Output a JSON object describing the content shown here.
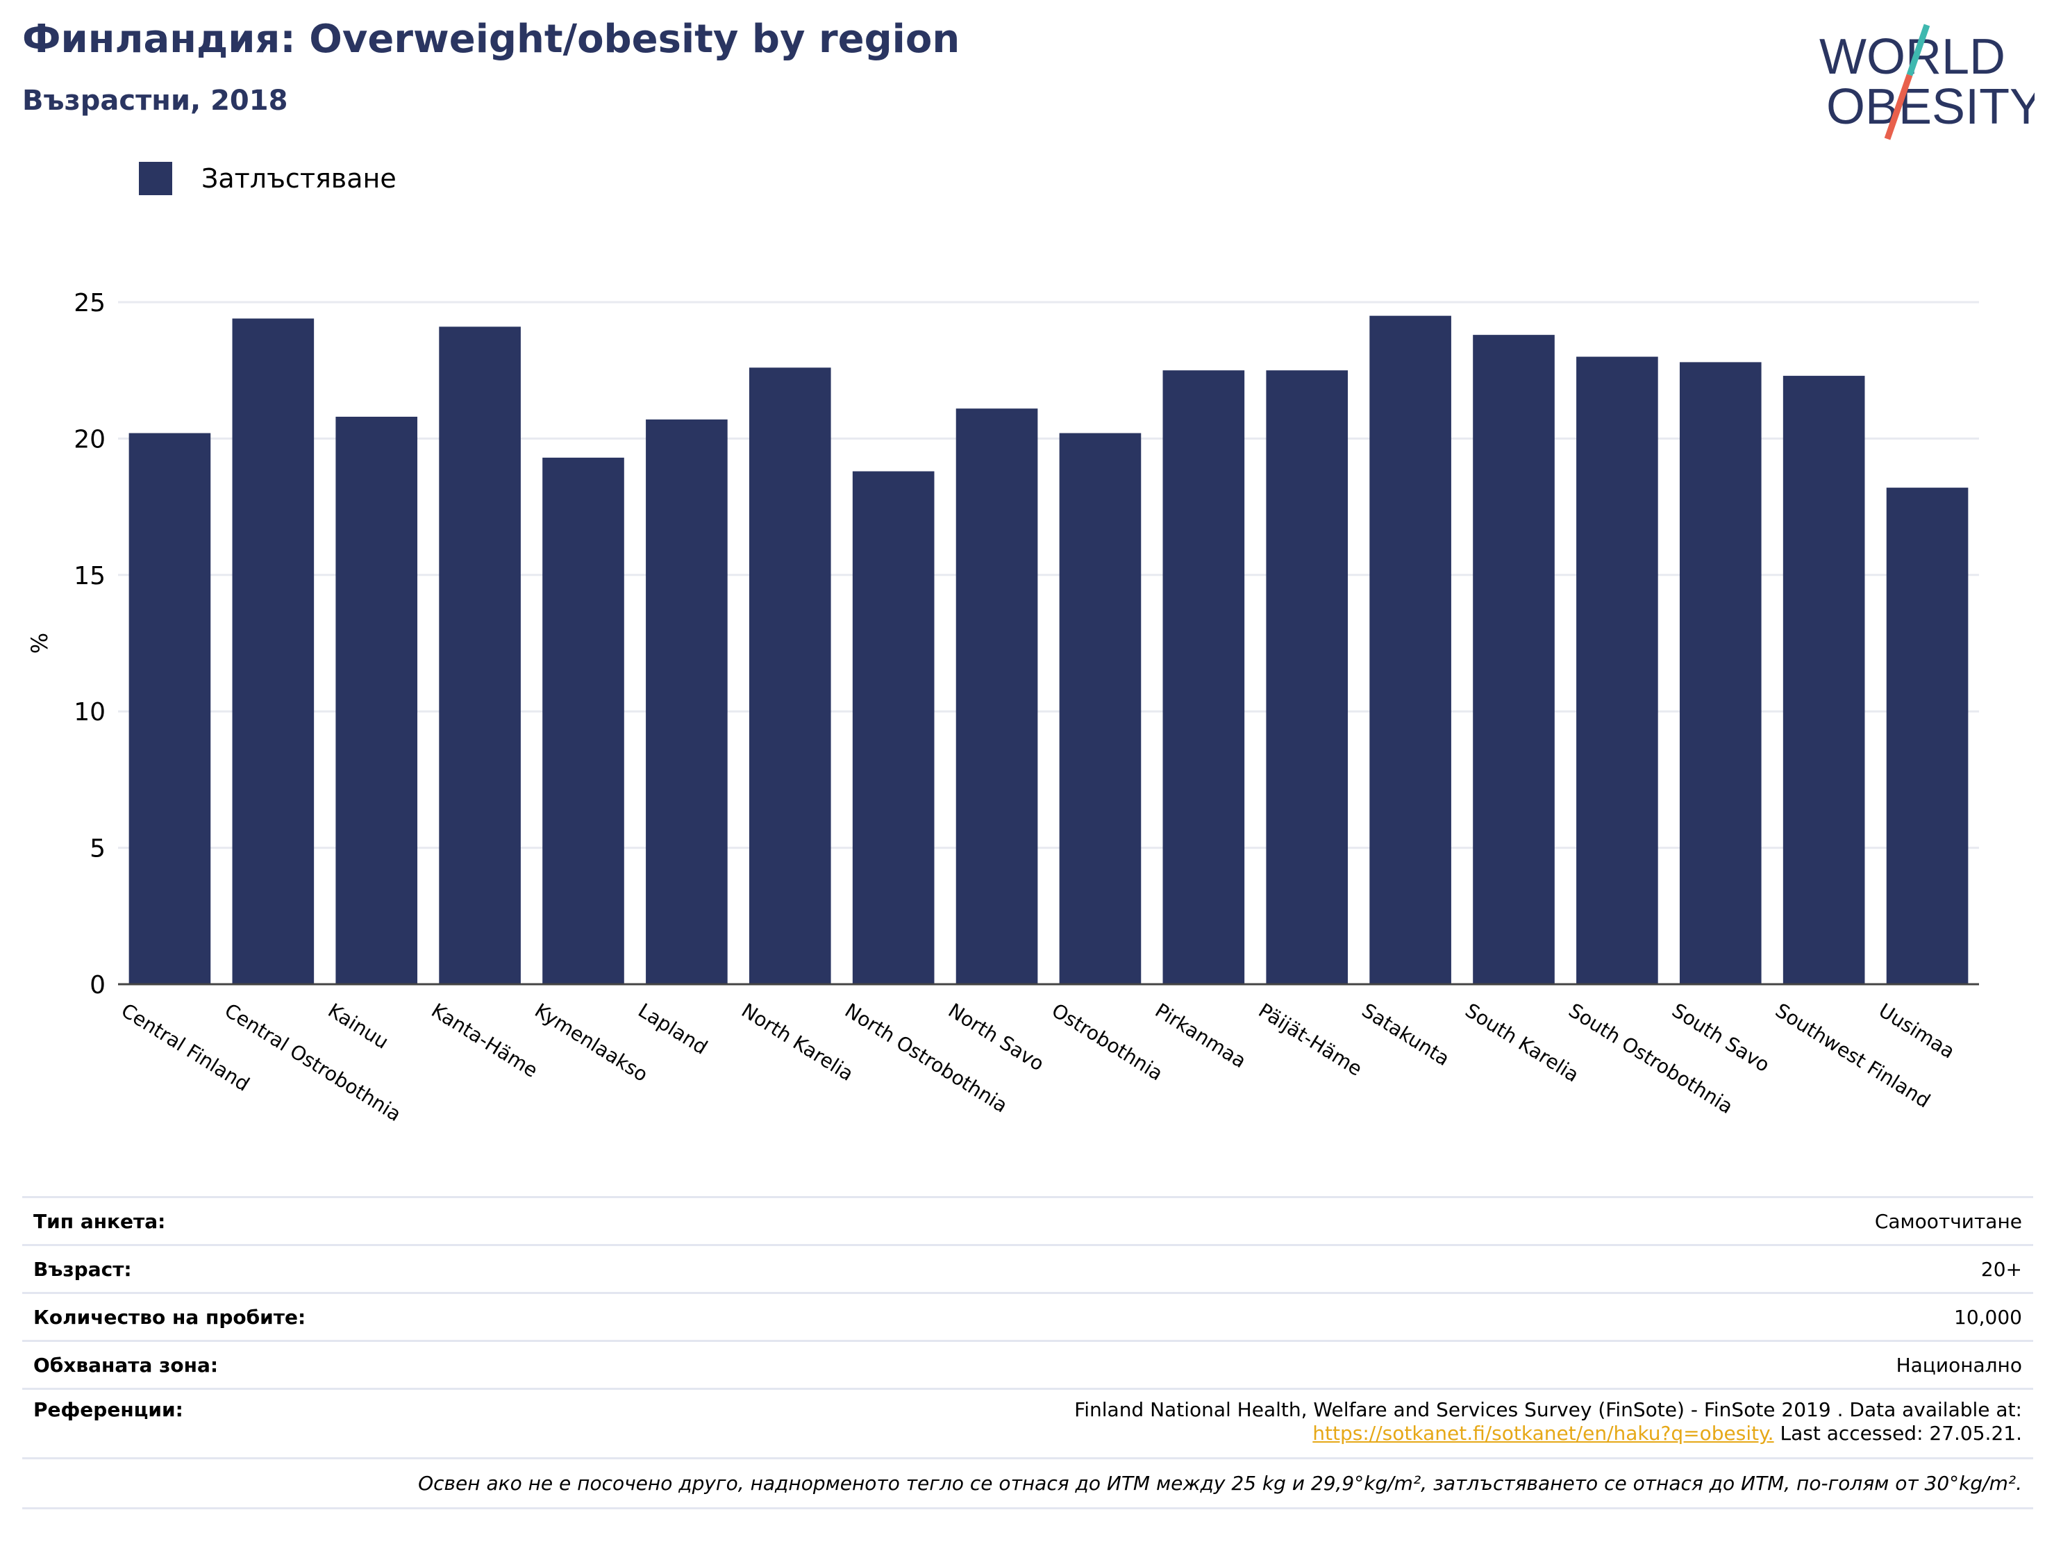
{
  "header": {
    "title": "Финландия: Overweight/obesity by region",
    "subtitle": "Възрастни, 2018"
  },
  "logo": {
    "line1": "WORLD",
    "line2": "OBESITY",
    "colors": {
      "text": "#2a3561",
      "slash_top": "#3fb8af",
      "slash_bottom": "#e8604c"
    }
  },
  "legend": {
    "label": "Затлъстяване",
    "color": "#2a3561"
  },
  "chart_data": {
    "type": "bar",
    "categories": [
      "Central Finland",
      "Central Ostrobothnia",
      "Kainuu",
      "Kanta-Häme",
      "Kymenlaakso",
      "Lapland",
      "North Karelia",
      "North Ostrobothnia",
      "North Savo",
      "Ostrobothnia",
      "Pirkanmaa",
      "Päijät-Häme",
      "Satakunta",
      "South Karelia",
      "South Ostrobothnia",
      "South Savo",
      "Southwest Finland",
      "Uusimaa"
    ],
    "series": [
      {
        "name": "Затлъстяване",
        "values": [
          20.2,
          24.4,
          20.8,
          24.1,
          19.3,
          20.7,
          22.6,
          18.8,
          21.1,
          20.2,
          22.5,
          22.5,
          24.5,
          23.8,
          23.0,
          22.8,
          22.3,
          18.2
        ]
      }
    ],
    "ylabel": "%",
    "ylim": [
      0,
      25
    ],
    "yticks": [
      0,
      5,
      10,
      15,
      20,
      25
    ],
    "grid": true,
    "bar_color": "#2a3561"
  },
  "info": {
    "survey_type_label": "Тип анкета:",
    "survey_type_value": "Самоотчитане",
    "age_label": "Възраст:",
    "age_value": "20+",
    "sample_size_label": "Количество на пробите:",
    "sample_size_value": "10,000",
    "area_label": "Обхваната зона:",
    "area_value": "Национално",
    "references_label": "Референции:",
    "references_text": "Finland National Health, Welfare and Services Survey (FinSote) - FinSote 2019 . Data available at:",
    "references_link": "https://sotkanet.fi/sotkanet/en/haku?q=obesity.",
    "references_accessed": " Last accessed: 27.05.21.",
    "note": "Освен ако не е посочено друго, наднорменото тегло се отнася до ИТМ между 25 kg и 29,9°kg/m², затлъстяването се отнася до ИТМ, по-голям от 30°kg/m²."
  }
}
